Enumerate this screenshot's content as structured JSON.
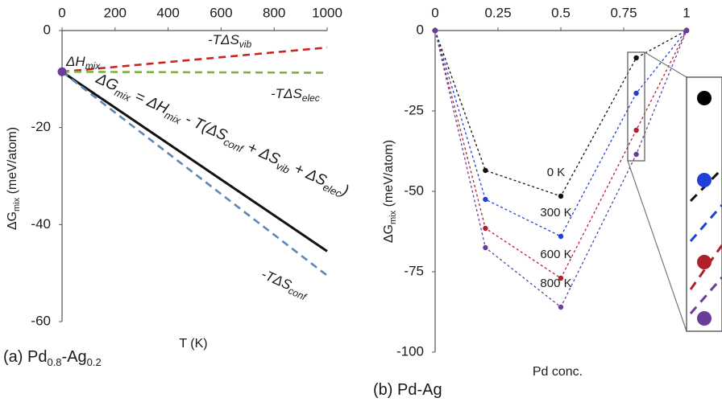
{
  "chart_data": [
    {
      "type": "line",
      "caption": "(a) Pd0.8-Ag0.2",
      "caption_parts": {
        "prefix": "(a) Pd",
        "sub1": "0.8",
        "mid": "-Ag",
        "sub2": "0.2"
      },
      "xlabel": "T (K)",
      "ylabel": "ΔGmix (meV/atom)",
      "ylabel_parts": {
        "base": "ΔG",
        "sub": "mix",
        "rest": " (meV/atom)"
      },
      "xlim": [
        0,
        1000
      ],
      "ylim": [
        -60,
        0
      ],
      "x_ticks": [
        0,
        200,
        400,
        600,
        800,
        1000
      ],
      "y_ticks": [
        0,
        -20,
        -40,
        -60
      ],
      "x_axis_position": "top",
      "grid": false,
      "series": [
        {
          "name": "-TΔSvib",
          "color": "#cc2222",
          "style": "dashed",
          "x": [
            0,
            1000
          ],
          "y": [
            -8.5,
            -3.5
          ]
        },
        {
          "name": "-TΔSelec",
          "color": "#7fb040",
          "style": "dashed",
          "x": [
            0,
            1000
          ],
          "y": [
            -8.5,
            -8.7
          ]
        },
        {
          "name": "ΔGmix",
          "color": "#111111",
          "style": "solid",
          "x": [
            0,
            1000
          ],
          "y": [
            -8.5,
            -45.5
          ]
        },
        {
          "name": "-TΔSconf",
          "color": "#5b86b8",
          "style": "dashed",
          "x": [
            0,
            1000
          ],
          "y": [
            -8.5,
            -50.5
          ]
        }
      ],
      "start_point": {
        "x": 0,
        "y": -8.5,
        "color": "#6a3d9a"
      },
      "annotations": {
        "dHmix": {
          "base": "ΔH",
          "sub": "mix"
        },
        "vib": {
          "base": "-TΔS",
          "sub": "vib"
        },
        "elec": {
          "base": "-TΔS",
          "sub": "elec"
        },
        "conf": {
          "base": "-TΔS",
          "sub": "conf"
        },
        "equation": {
          "t1": "ΔG",
          "s1": "mix",
          "t2": " = ΔH",
          "s2": "mix",
          "t3": " - T(ΔS",
          "s3": "conf",
          "t4": " + ΔS",
          "s4": "vib",
          "t5": " + ΔS",
          "s5": "elec",
          "t6": ")"
        }
      }
    },
    {
      "type": "scatter",
      "caption": "(b) Pd-Ag",
      "xlabel": "Pd conc.",
      "ylabel": "ΔGmix (meV/atom)",
      "ylabel_parts": {
        "base": "ΔG",
        "sub": "mix",
        "rest": " (meV/atom)"
      },
      "xlim": [
        0,
        1
      ],
      "ylim": [
        -100,
        0
      ],
      "x_ticks": [
        0,
        0.25,
        0.5,
        0.75,
        1
      ],
      "y_ticks": [
        0,
        -25,
        -50,
        -75,
        -100
      ],
      "x_axis_position": "top",
      "grid": false,
      "x": [
        0,
        0.2,
        0.5,
        0.8,
        1
      ],
      "series": [
        {
          "name": "0 K",
          "color": "#111111",
          "y": [
            0,
            -43.5,
            -51.5,
            -8.5,
            0
          ]
        },
        {
          "name": "300 K",
          "color": "#1f3fd6",
          "y": [
            0,
            -52.5,
            -64,
            -19.5,
            0
          ]
        },
        {
          "name": "600 K",
          "color": "#b0202c",
          "y": [
            0,
            -61.5,
            -77,
            -31,
            0
          ]
        },
        {
          "name": "800 K",
          "color": "#6a3d9a",
          "y": [
            0,
            -67.5,
            -86,
            -38.5,
            0
          ]
        }
      ],
      "inset": {
        "zoom_of_x": 0.8,
        "description": "magnified view of x=0.8 points"
      }
    }
  ]
}
